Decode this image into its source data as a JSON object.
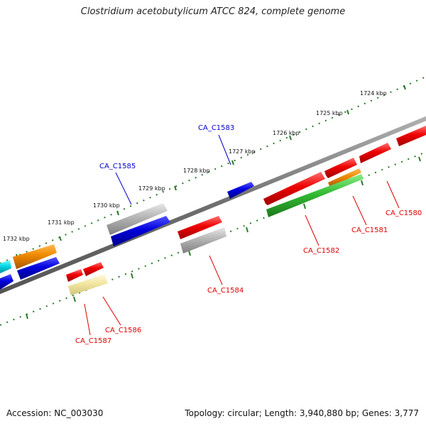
{
  "title": "Clostridium acetobutylicum ATCC 824, complete genome",
  "footer": {
    "accession": "Accession: NC_003030",
    "meta": "Topology: circular; Length: 3,940,880 bp; Genes: 3,777"
  },
  "ticks": [
    "1724 kbp",
    "1725 kbp",
    "1726 kbp",
    "1727 kbp",
    "1728 kbp",
    "1729 kbp",
    "1730 kbp",
    "1731 kbp",
    "1732 kbp"
  ],
  "labels": {
    "forward": [
      "CA_C1583",
      "CA_C1585"
    ],
    "reverse": [
      "CA_C1580",
      "CA_C1581",
      "CA_C1582",
      "CA_C1584",
      "CA_C1586",
      "CA_C1587"
    ]
  },
  "colors": {
    "backbone": "#777777",
    "red": "#ee0000",
    "blue": "#0000dd",
    "orange": "#ee8800",
    "gray": "#b0b0b0",
    "green": "#33bb33",
    "yellow": "#f2e6a0",
    "cyan": "#00d8e8",
    "tick": "#2a7a2a",
    "label_forward": "#0000cc",
    "label_reverse": "#dd0000"
  }
}
